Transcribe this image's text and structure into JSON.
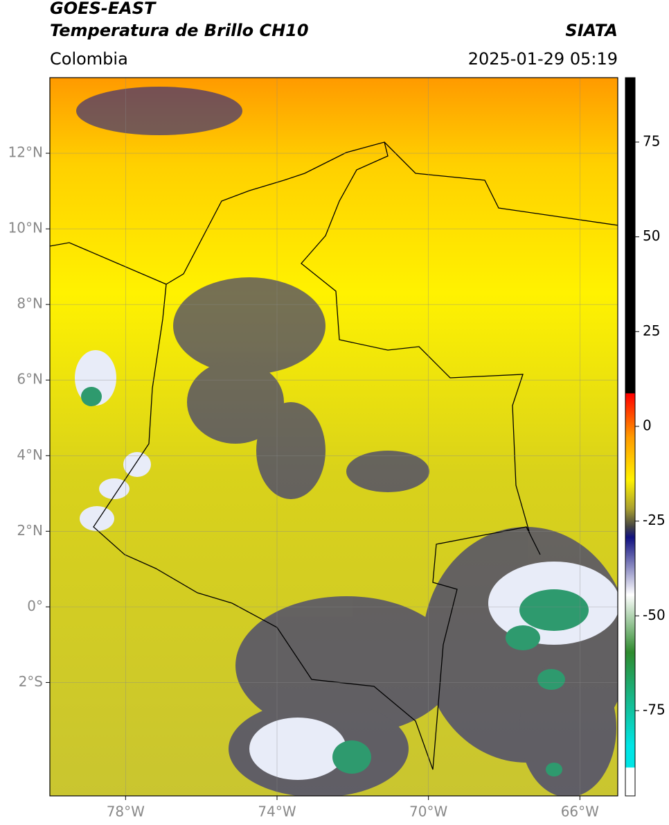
{
  "header": {
    "title": "GOES-EAST",
    "subtitle": "Temperatura de Brillo CH10",
    "region": "Colombia",
    "source": "SIATA",
    "datetime": "2025-01-29 05:19"
  },
  "map": {
    "xlim": [
      -80,
      -65
    ],
    "ylim": [
      -5,
      14
    ],
    "xticks": [
      {
        "value": -78,
        "label": "78°W"
      },
      {
        "value": -74,
        "label": "74°W"
      },
      {
        "value": -70,
        "label": "70°W"
      },
      {
        "value": -66,
        "label": "66°W"
      }
    ],
    "yticks": [
      {
        "value": 12,
        "label": "12°N"
      },
      {
        "value": 10,
        "label": "10°N"
      },
      {
        "value": 8,
        "label": "8°N"
      },
      {
        "value": 6,
        "label": "6°N"
      },
      {
        "value": 4,
        "label": "4°N"
      },
      {
        "value": 2,
        "label": "2°N"
      },
      {
        "value": 0,
        "label": "0°"
      },
      {
        "value": -2,
        "label": "2°S"
      }
    ],
    "grid": true
  },
  "colorbar": {
    "lim": [
      -97.5,
      92
    ],
    "ticks": [
      75,
      50,
      25,
      0,
      -25,
      -50,
      -75
    ]
  }
}
